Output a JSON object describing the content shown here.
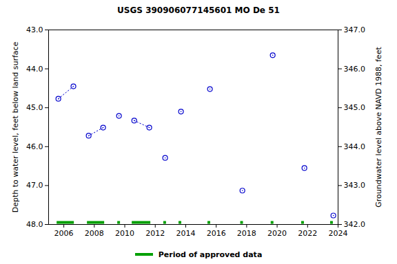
{
  "chart_data": {
    "type": "scatter",
    "title": "USGS 390906077145601 MO De 51",
    "y_label": "Depth to water level, feet below land surface",
    "y2_label": "Groundwater level above NAVD 1988, feet",
    "x": [
      2005.64,
      2006.63,
      null,
      2007.63,
      2008.58,
      null,
      2009.62,
      null,
      2010.62,
      2011.61,
      null,
      2012.65,
      null,
      2013.69,
      null,
      2015.59,
      null,
      2017.72,
      null,
      2019.71,
      null,
      2021.79,
      null,
      2023.69
    ],
    "series": [
      {
        "color": "#0000cc",
        "marker": "circle",
        "line_style": "dotted",
        "values": [
          44.77,
          44.45,
          null,
          45.72,
          45.51,
          null,
          45.21,
          null,
          45.33,
          45.51,
          null,
          46.29,
          null,
          45.1,
          null,
          44.52,
          null,
          47.13,
          null,
          43.65,
          null,
          46.55,
          null,
          47.77
        ]
      },
      {
        "name": "Period of approved data",
        "type": "interval",
        "color": "#00a000",
        "start": [
          2005.55,
          2007.54,
          2009.53,
          2010.48,
          2012.55,
          2013.55,
          2015.45,
          2017.6,
          2019.6,
          2021.6,
          2023.5
        ],
        "end": [
          2006.68,
          2008.67,
          2009.71,
          2011.7,
          2012.73,
          2013.73,
          2015.63,
          2017.78,
          2019.78,
          2021.78,
          2023.68
        ]
      }
    ],
    "xlim": [
      2005,
      2024
    ],
    "xticks": [
      2006,
      2008,
      2010,
      2012,
      2014,
      2016,
      2018,
      2020,
      2022,
      2024
    ],
    "ylim": [
      48,
      43
    ],
    "yticks": [
      {
        "value": 43,
        "label": "43.0"
      },
      {
        "value": 44,
        "label": "44.0"
      },
      {
        "value": 45,
        "label": "45.0"
      },
      {
        "value": 46,
        "label": "46.0"
      },
      {
        "value": 47,
        "label": "47.0"
      },
      {
        "value": 48,
        "label": "48.0"
      }
    ],
    "y2lim": [
      342,
      347
    ],
    "y2ticks": [
      {
        "value": 342,
        "label": "342.0"
      },
      {
        "value": 343,
        "label": "343.0"
      },
      {
        "value": 344,
        "label": "344.0"
      },
      {
        "value": 345,
        "label": "345.0"
      },
      {
        "value": 346,
        "label": "346.0"
      },
      {
        "value": 347,
        "label": "347.0"
      }
    ],
    "grid": false,
    "legend": "bottom"
  }
}
